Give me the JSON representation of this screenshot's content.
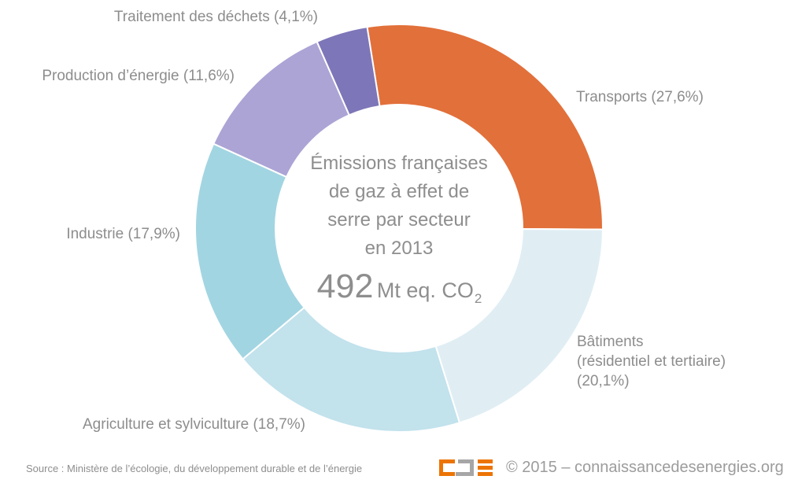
{
  "chart_data": {
    "type": "pie",
    "donut": true,
    "title": "Émissions françaises de gaz à effet de serre par secteur en 2013",
    "title_lines": "Émissions françaises\nde gaz à effet de\nserre par secteur\nen 2013",
    "total_value": "492",
    "total_unit": "Mt eq. CO",
    "total_unit_subscript": "2",
    "units": "percent",
    "start_angle_deg": -9,
    "legend_position": "around",
    "categories": [
      "Transports",
      "Bâtiments (résidentiel et tertiaire)",
      "Agriculture et sylviculture",
      "Industrie",
      "Production d’énergie",
      "Traitement des déchets"
    ],
    "values": [
      27.6,
      20.1,
      18.7,
      17.9,
      11.6,
      4.1
    ],
    "segments": [
      {
        "name": "Transports",
        "value": 27.6,
        "label": "Transports (27,6%)",
        "color": "#E2703A"
      },
      {
        "name": "Bâtiments (résidentiel et tertiaire)",
        "value": 20.1,
        "label": "Bâtiments\n(résidentiel et tertiaire)\n(20,1%)",
        "color": "#E0EEF4"
      },
      {
        "name": "Agriculture et sylviculture",
        "value": 18.7,
        "label": "Agriculture et sylviculture (18,7%)",
        "color": "#C2E2EC"
      },
      {
        "name": "Industrie",
        "value": 17.9,
        "label": "Industrie (17,9%)",
        "color": "#A2D5E2"
      },
      {
        "name": "Production d’énergie",
        "value": 11.6,
        "label": "Production d’énergie (11,6%)",
        "color": "#ABA4D5"
      },
      {
        "name": "Traitement des déchets",
        "value": 4.1,
        "label": "Traitement des déchets (4,1%)",
        "color": "#7D76B8"
      }
    ]
  },
  "footer": {
    "source": "Source : Ministère de l’écologie, du développement durable et de l’énergie",
    "copyright": "© 2015 – connaissancedesenergies.org",
    "logo_orange": "#EC7405",
    "logo_gray": "#A6A6A6"
  }
}
